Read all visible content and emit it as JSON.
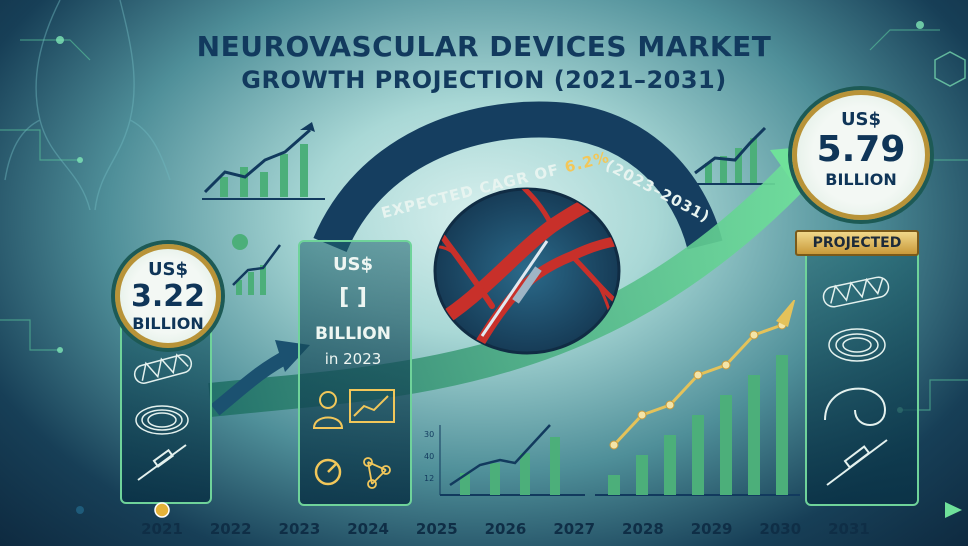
{
  "title": {
    "line1": "NEUROVASCULAR DEVICES MARKET",
    "line2": "GROWTH PROJECTION (2021–2031)"
  },
  "cagr": {
    "prefix": "EXPECTED CAGR OF",
    "value": "6.2%",
    "period": "(2023–2031)"
  },
  "badges": {
    "start": {
      "currency": "US$",
      "value": "3.22",
      "unit": "BILLION"
    },
    "mid": {
      "currency": "US$",
      "value": "[       ]",
      "unit": "BILLION",
      "note": "in 2023"
    },
    "end": {
      "currency": "US$",
      "value": "5.79",
      "unit": "BILLION",
      "tag": "PROJECTED"
    }
  },
  "mini_chart_ticks": [
    "30",
    "40",
    "12"
  ],
  "colors": {
    "title": "#123a5e",
    "accent_green": "#6fd39a",
    "gold": "#c99a3a",
    "artery_red": "#c8302a"
  },
  "icons": [
    "stent-icon",
    "coil-icon",
    "catheter-icon",
    "analyst-icon",
    "dashboard-icon",
    "brain-network-icon",
    "molecule-icon",
    "pie-chart-icon"
  ],
  "chart_data": {
    "type": "bar",
    "title": "NEUROVASCULAR DEVICES MARKET GROWTH PROJECTION (2021–2031)",
    "categories": [
      "2021",
      "2022",
      "2023",
      "2024",
      "2025",
      "2026",
      "2027",
      "2028",
      "2029",
      "2030",
      "2031"
    ],
    "x": [
      "2021",
      "2022",
      "2023",
      "2024",
      "2025",
      "2026",
      "2027",
      "2028",
      "2029",
      "2030",
      "2031"
    ],
    "labeled_points": [
      {
        "x": "2021",
        "value": 3.22,
        "label": "US$ 3.22 BILLION"
      },
      {
        "x": "2031",
        "value": 5.79,
        "label": "US$ 5.79 BILLION PROJECTED"
      }
    ],
    "cagr_percent": 6.2,
    "cagr_period": "(2023–2031)",
    "xlabel": "",
    "ylabel": ""
  }
}
